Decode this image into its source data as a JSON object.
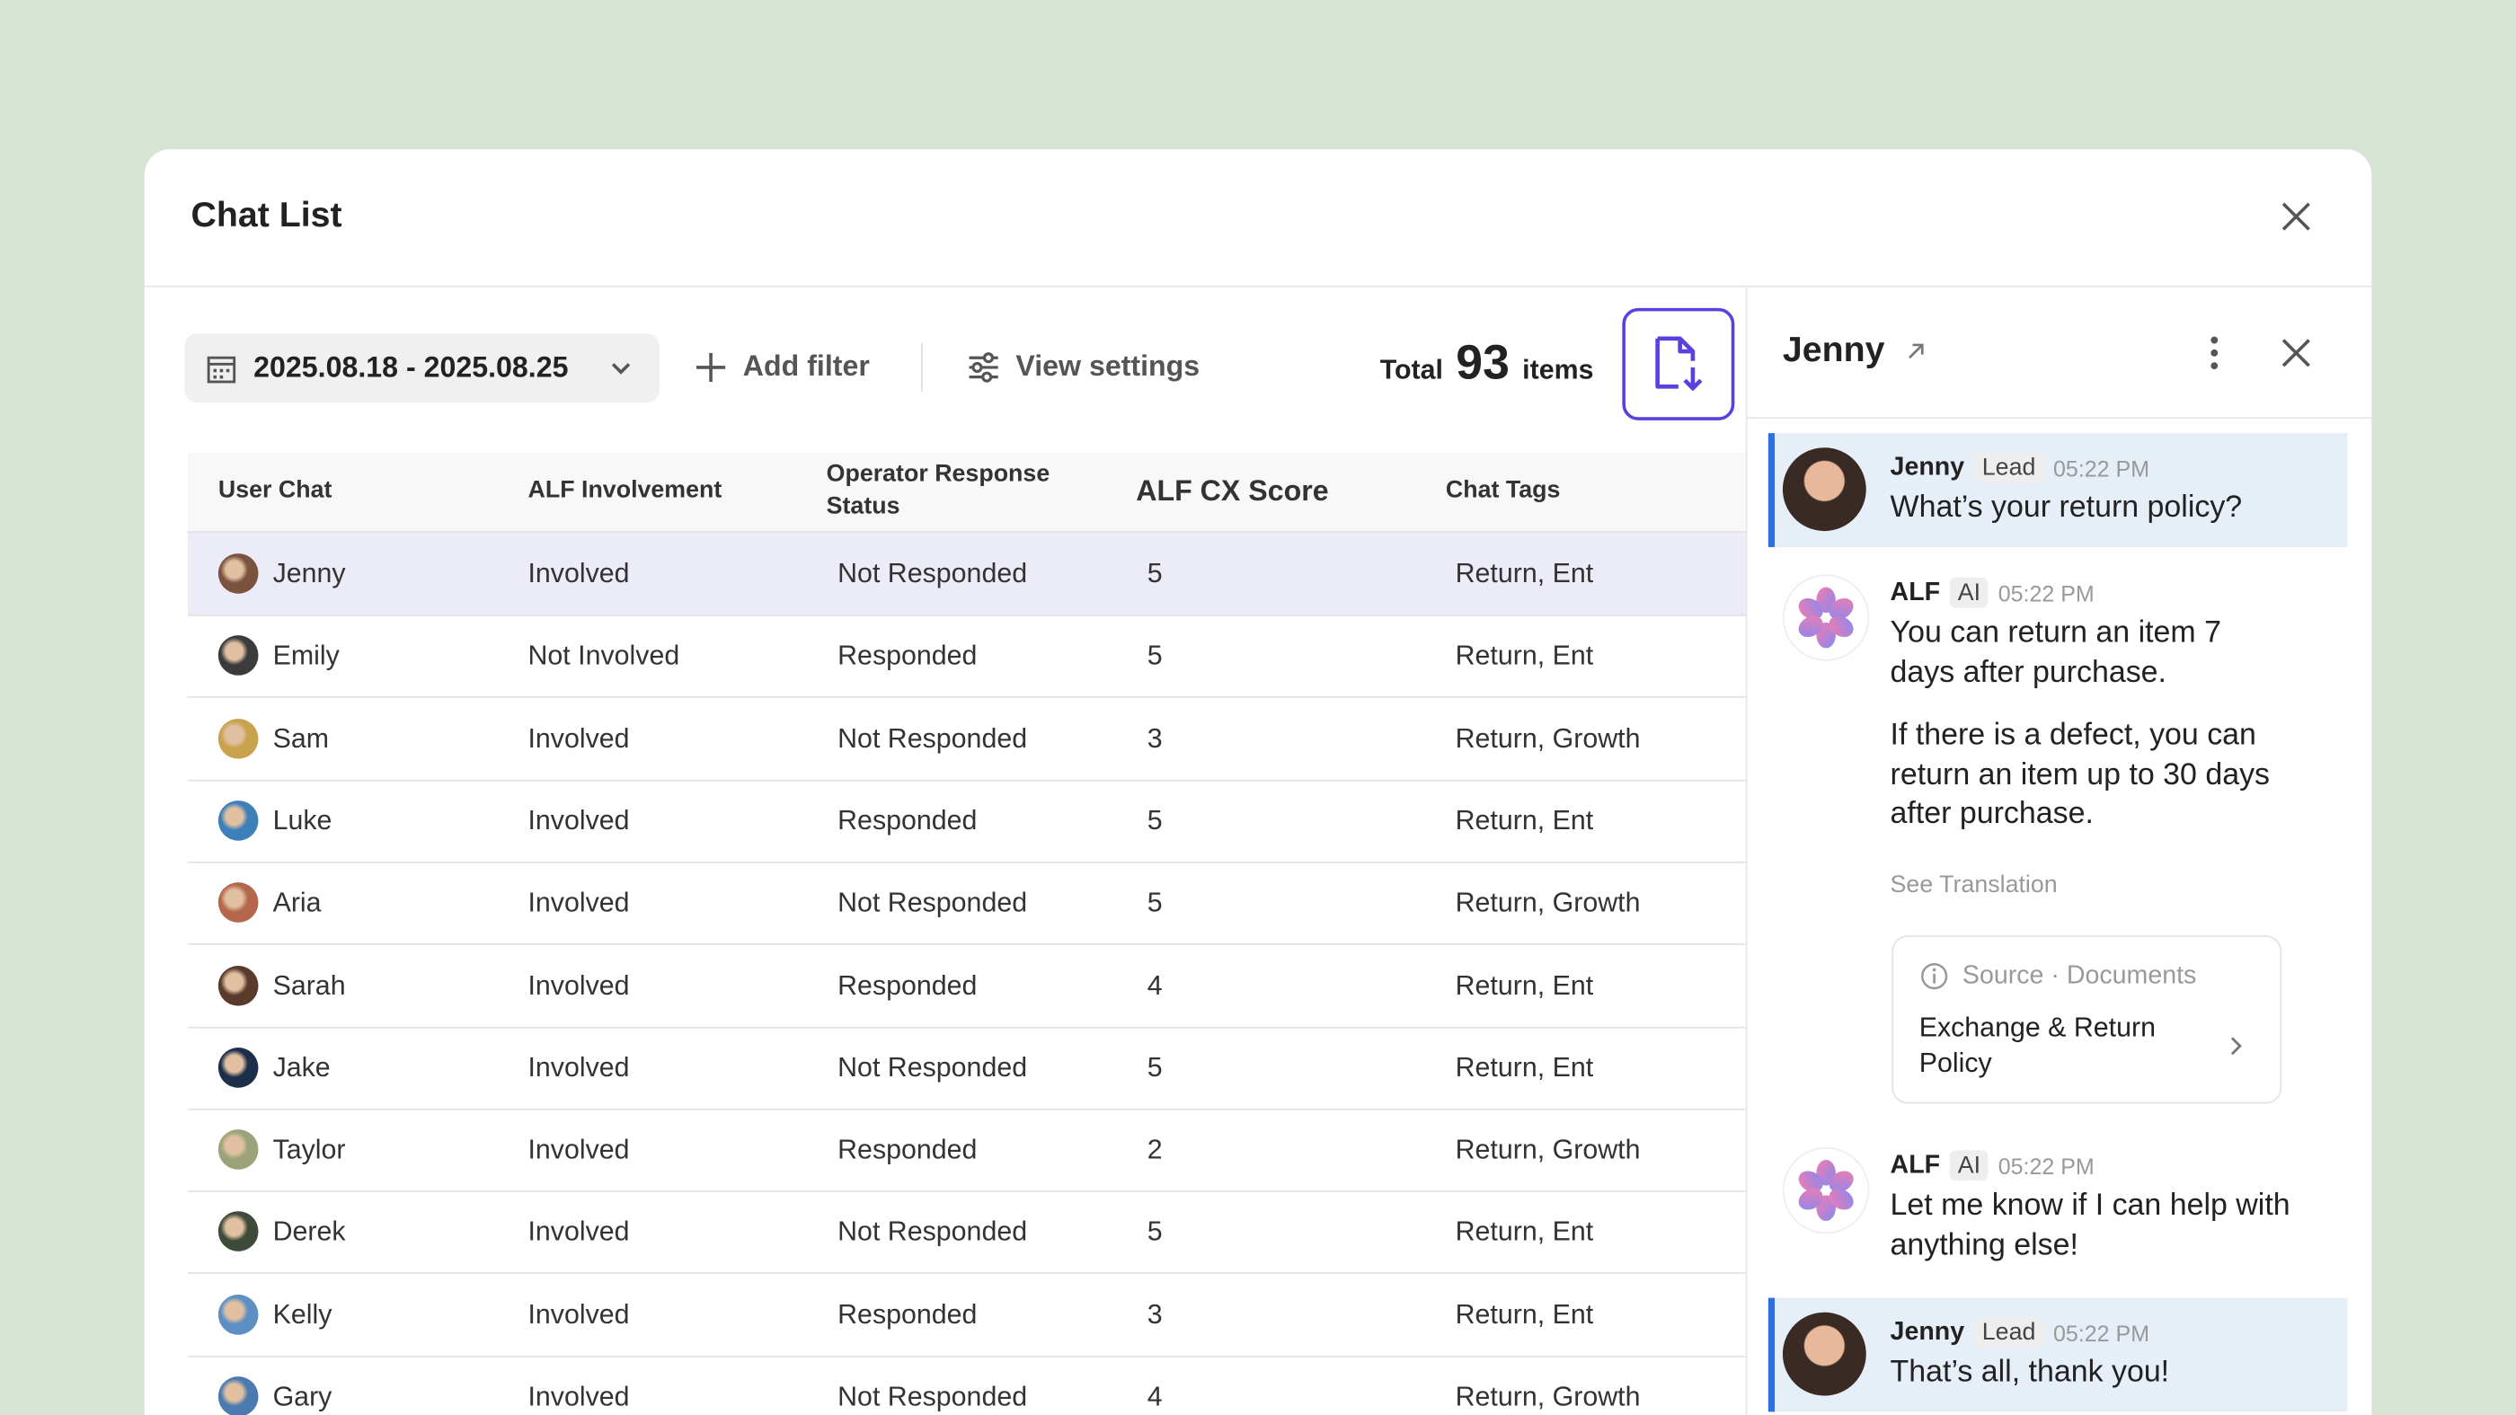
{
  "header": {
    "title": "Chat List"
  },
  "toolbar": {
    "date_range": "2025.08.18 - 2025.08.25",
    "add_filter": "Add filter",
    "view_settings": "View settings",
    "total_prefix": "Total",
    "total_count": 93,
    "total_suffix": "items"
  },
  "table": {
    "columns": [
      "User Chat",
      "ALF Involvement",
      "Operator Response Status",
      "ALF CX Score",
      "Chat Tags"
    ],
    "rows": [
      [
        "Jenny",
        "Involved",
        "Not Responded",
        5,
        "Return, Ent"
      ],
      [
        "Emily",
        "Not Involved",
        "Responded",
        5,
        "Return, Ent"
      ],
      [
        "Sam",
        "Involved",
        "Not Responded",
        3,
        "Return, Growth"
      ],
      [
        "Luke",
        "Involved",
        "Responded",
        5,
        "Return, Ent"
      ],
      [
        "Aria",
        "Involved",
        "Not Responded",
        5,
        "Return, Growth"
      ],
      [
        "Sarah",
        "Involved",
        "Responded",
        4,
        "Return, Ent"
      ],
      [
        "Jake",
        "Involved",
        "Not Responded",
        5,
        "Return, Ent"
      ],
      [
        "Taylor",
        "Involved",
        "Responded",
        2,
        "Return, Growth"
      ],
      [
        "Derek",
        "Involved",
        "Not Responded",
        5,
        "Return, Ent"
      ],
      [
        "Kelly",
        "Involved",
        "Responded",
        3,
        "Return, Ent"
      ],
      [
        "Gary",
        "Involved",
        "Not Responded",
        4,
        "Return, Growth"
      ]
    ]
  },
  "chat": {
    "name": "Jenny",
    "messages": [
      {
        "sender": "Jenny",
        "tag": "Lead",
        "time": "05:22 PM",
        "paragraphs": [
          "What’s your return policy?"
        ]
      },
      {
        "sender": "ALF",
        "tag": "AI",
        "time": "05:22 PM",
        "paragraphs": [
          "You can return an item 7 days after purchase.",
          "If there is a defect, you can return an item up to 30 days after purchase."
        ],
        "translation": "See Translation",
        "source_label": "Source · Documents",
        "source_title": "Exchange & Return Policy"
      },
      {
        "sender": "ALF",
        "tag": "AI",
        "time": "05:22 PM",
        "paragraphs": [
          "Let me know if I can help with anything else!"
        ]
      },
      {
        "sender": "Jenny",
        "tag": "Lead",
        "time": "05:22 PM",
        "paragraphs": [
          "That’s all, thank you!"
        ]
      }
    ]
  }
}
